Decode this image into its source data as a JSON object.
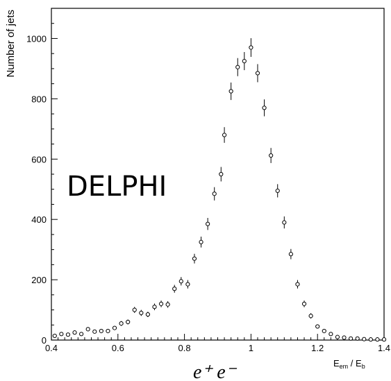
{
  "chart_data": {
    "type": "scatter",
    "ylabel": "Number of jets",
    "xlabel": "E_em / E_b",
    "xlabel_main": "E",
    "xlabel_main_sub": "em",
    "xlabel_sep": " / ",
    "xlabel_den": "E",
    "xlabel_den_sub": "b",
    "annotation_experiment": "DELPHI",
    "annotation_process": "e⁺ e⁻",
    "xlim": [
      0.4,
      1.4
    ],
    "ylim": [
      0,
      1100
    ],
    "xticks": [
      0.4,
      0.6,
      0.8,
      1.0,
      1.2,
      1.4
    ],
    "xtick_labels": [
      "0.4",
      "0.6",
      "0.8",
      "1",
      "1.2",
      "1.4"
    ],
    "yticks": [
      0,
      200,
      400,
      600,
      800,
      1000
    ],
    "ytick_labels": [
      "0",
      "200",
      "400",
      "600",
      "800",
      "1000"
    ],
    "marker": "open-circle",
    "series": [
      {
        "x": [
          0.41,
          0.43,
          0.45,
          0.47,
          0.49,
          0.51,
          0.53,
          0.55,
          0.57,
          0.59,
          0.61,
          0.63,
          0.65,
          0.67,
          0.69,
          0.71,
          0.73,
          0.75,
          0.77,
          0.79,
          0.81,
          0.83,
          0.85,
          0.87,
          0.89,
          0.91,
          0.92,
          0.94,
          0.96,
          0.98,
          1.0,
          1.02,
          1.04,
          1.06,
          1.08,
          1.1,
          1.12,
          1.14,
          1.16,
          1.18,
          1.2,
          1.22,
          1.24,
          1.26,
          1.28,
          1.3,
          1.32,
          1.34,
          1.36,
          1.38,
          1.4
        ],
        "y": [
          14,
          20,
          18,
          25,
          20,
          36,
          28,
          30,
          30,
          40,
          55,
          60,
          100,
          90,
          85,
          110,
          120,
          118,
          170,
          195,
          185,
          270,
          325,
          385,
          485,
          550,
          680,
          825,
          905,
          925,
          970,
          885,
          770,
          612,
          495,
          390,
          285,
          185,
          120,
          80,
          45,
          30,
          20,
          10,
          8,
          5,
          5,
          3,
          2,
          2,
          2
        ],
        "err": [
          4,
          4,
          4,
          5,
          4,
          6,
          5,
          5,
          5,
          6,
          8,
          8,
          10,
          10,
          9,
          11,
          11,
          11,
          13,
          14,
          14,
          16,
          18,
          20,
          22,
          24,
          26,
          29,
          30,
          30,
          31,
          30,
          28,
          25,
          22,
          20,
          17,
          14,
          11,
          9,
          7,
          6,
          5,
          3,
          3,
          2,
          2,
          2,
          1,
          1,
          1
        ]
      }
    ]
  }
}
